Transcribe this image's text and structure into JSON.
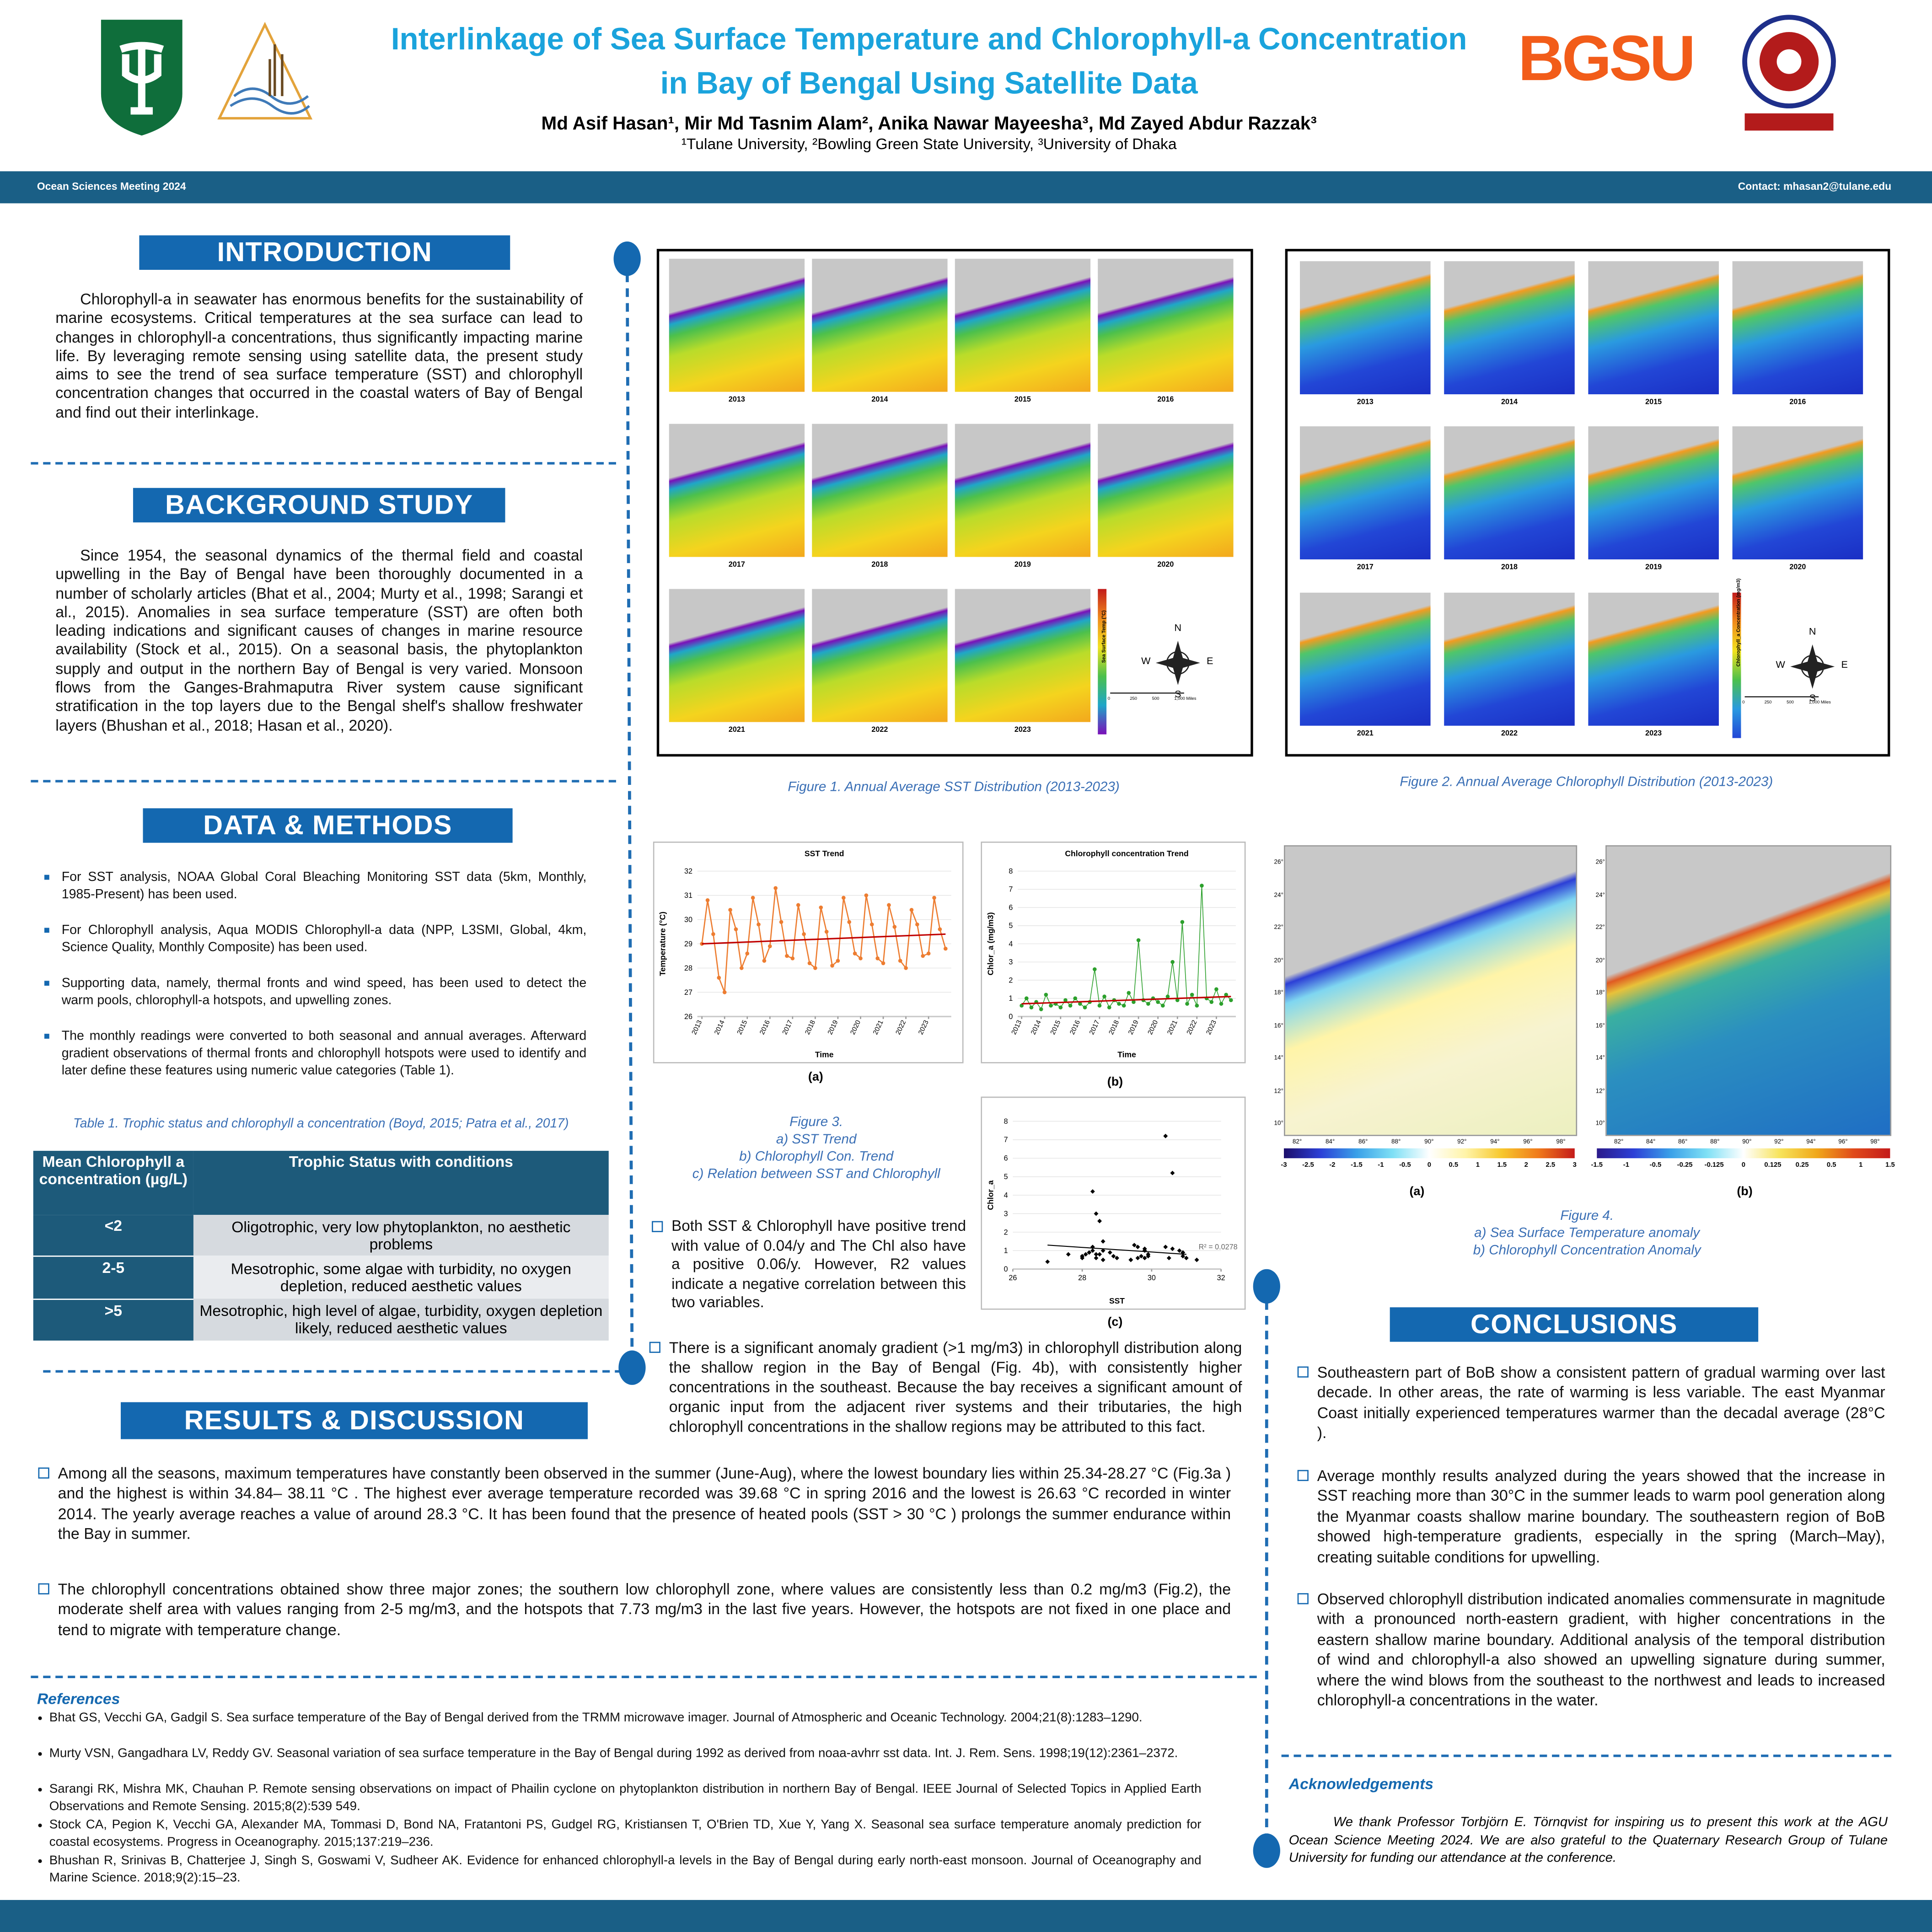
{
  "header": {
    "title": "Interlinkage of Sea Surface Temperature and Chlorophyll-a Concentration in Bay of Bengal Using Satellite Data",
    "authors": "Md Asif Hasan¹, Mir Md Tasnim Alam², Anika Nawar Mayeesha³, Md Zayed Abdur Razzak³",
    "affiliations": "¹Tulane University, ²Bowling Green State University, ³University of Dhaka",
    "logo_text": "BGSU",
    "meeting": "Ocean Sciences Meeting 2024",
    "contact": "Contact: mhasan2@tulane.edu"
  },
  "introduction": {
    "heading": "INTRODUCTION",
    "text": "Chlorophyll-a in seawater has enormous benefits for the sustainability of marine ecosystems. Critical temperatures at the sea surface can lead to changes in chlorophyll-a concentrations, thus significantly impacting marine life. By leveraging remote sensing using satellite data, the present study aims to see the trend of sea surface temperature (SST) and chlorophyll concentration changes that occurred in the coastal waters of Bay of Bengal and find out their interlinkage."
  },
  "background": {
    "heading": "BACKGROUND STUDY",
    "text": "Since 1954, the seasonal dynamics of the thermal field and coastal upwelling in the Bay of Bengal have been thoroughly documented in a number of scholarly articles (Bhat et al., 2004; Murty et al., 1998; Sarangi et al., 2015). Anomalies in sea surface temperature (SST) are often both leading indications and significant causes of changes in marine resource availability (Stock et al., 2015). On a seasonal basis, the phytoplankton supply and output in the northern Bay of Bengal is very varied. Monsoon flows from the Ganges-Brahmaputra River system cause significant stratification in the top layers due to the Bengal shelf's shallow freshwater layers (Bhushan et al., 2018; Hasan et al., 2020)."
  },
  "data_methods": {
    "heading": "DATA & METHODS",
    "bullets": [
      "For SST analysis, NOAA Global Coral Bleaching Monitoring SST data (5km, Monthly, 1985-Present) has been used.",
      "For Chlorophyll analysis, Aqua MODIS Chlorophyll-a data (NPP, L3SMI, Global, 4km, Science Quality, Monthly Composite) has been used.",
      "Supporting data, namely, thermal fronts and wind speed, has been used to detect the warm pools, chlorophyll-a hotspots, and upwelling zones.",
      "The monthly readings were converted to both seasonal and annual averages. Afterward gradient observations of thermal fronts and chlorophyll hotspots were used to identify and later define these features using numeric value categories (Table 1)."
    ],
    "table_caption": "Table 1. Trophic status and chlorophyll a concentration (Boyd, 2015; Patra et al., 2017)",
    "table": {
      "headers": [
        "Mean Chlorophyll a concentration (µg/L)",
        "Trophic Status with conditions"
      ],
      "rows": [
        [
          "<2",
          "Oligotrophic, very low phytoplankton, no aesthetic problems"
        ],
        [
          "2-5",
          "Mesotrophic, some algae with turbidity, no oxygen depletion, reduced aesthetic values"
        ],
        [
          ">5",
          "Mesotrophic, high level of algae, turbidity, oxygen depletion likely, reduced aesthetic values"
        ]
      ]
    }
  },
  "results": {
    "heading": "RESULTS & DISCUSSION",
    "paragraphs": [
      "Among all the seasons, maximum temperatures have constantly been observed in the summer (June-Aug), where the lowest boundary lies within 25.34-28.27 °C (Fig.3a ) and the highest is within 34.84– 38.11 °C . The highest ever average temperature recorded was 39.68 °C in spring 2016 and the lowest is 26.63 °C recorded in winter 2014. The yearly  average reaches a value of around 28.3 °C. It has been found that the presence of heated pools (SST > 30 °C ) prolongs the summer endurance within the Bay in summer.",
      "The chlorophyll concentrations obtained show three major zones; the southern low chlorophyll zone, where values are consistently less than 0.2 mg/m3 (Fig.2), the moderate shelf area with values ranging from 2-5 mg/m3, and the hotspots that 7.73 mg/m3 in the last five years. However, the hotspots are not fixed in one place and tend to migrate with temperature change."
    ],
    "figure3_text": "Both SST & Chlorophyll have positive trend with value of 0.04/y and The Chl also have a positive  0.06/y. However, R2 values indicate a negative correlation between this two variables.",
    "anomaly_text": "There is a significant anomaly gradient (>1 mg/m3) in chlorophyll distribution along the shallow region in the Bay of Bengal (Fig. 4b), with consistently higher concentrations in the southeast. Because the bay receives a significant amount of organic input from the adjacent river systems and their tributaries, the high chlorophyll concentrations in the shallow regions may be attributed to this fact."
  },
  "references": {
    "heading": "References",
    "items": [
      "Bhat GS, Vecchi GA, Gadgil S. Sea surface temperature of the Bay of Bengal derived from the TRMM microwave imager. Journal of Atmospheric and Oceanic Technology. 2004;21(8):1283–1290.",
      "Murty VSN, Gangadhara LV, Reddy GV. Seasonal variation of sea surface temperature in the Bay of Bengal during 1992 as derived from noaa-avhrr sst data. Int. J. Rem. Sens. 1998;19(12):2361–2372.",
      "Sarangi RK, Mishra MK, Chauhan P. Remote sensing observations on impact of Phailin cyclone on phytoplankton distribution in northern Bay of Bengal. IEEE Journal of Selected Topics in Applied Earth Observations and Remote Sensing. 2015;8(2):539 549.",
      "Stock CA, Pegion K, Vecchi GA, Alexander MA, Tommasi D, Bond NA, Fratantoni PS, Gudgel RG, Kristiansen T, O'Brien TD, Xue Y, Yang X. Seasonal sea surface temperature anomaly prediction for coastal ecosystems. Progress in Oceanography. 2015;137:219–236.",
      "Bhushan R, Srinivas B, Chatterjee J, Singh S, Goswami V, Sudheer AK. Evidence for enhanced chlorophyll-a levels in the Bay of Bengal during early north-east monsoon. Journal of Oceanography and Marine Science. 2018;9(2):15–23."
    ]
  },
  "conclusions": {
    "heading": "CONCLUSIONS",
    "bullets": [
      "Southeastern part of BoB show a consistent pattern of gradual warming over last decade. In other areas, the rate of warming is less variable. The east Myanmar Coast initially experienced temperatures warmer than the decadal average (28°C ).",
      "Average monthly results analyzed during the years showed that the increase in SST reaching more than 30°C in the summer leads to warm pool generation along the Myanmar coasts shallow marine boundary. The southeastern region of BoB showed high-temperature gradients, especially in the spring (March–May), creating suitable conditions for upwelling.",
      "Observed chlorophyll distribution indicated anomalies commensurate in magnitude with a pronounced north-eastern gradient, with higher concentrations in the eastern shallow marine boundary. Additional analysis of the temporal distribution of wind and chlorophyll-a also showed an upwelling signature during summer, where the wind blows from the southeast to the northwest and leads to increased chlorophyll-a concentrations in the water."
    ]
  },
  "acknowledgements": {
    "heading": "Acknowledgements",
    "text": "We thank Professor Torbjörn E. Törnqvist for inspiring us to present this work at the AGU Ocean Science Meeting 2024. We are also grateful to the Quaternary Research Group of Tulane University for funding our attendance at the conference."
  },
  "map_decor": {
    "compass": [
      "N",
      "E",
      "S",
      "W"
    ],
    "scale": [
      "0",
      "250",
      "500",
      "1,000 Miles"
    ],
    "lon": [
      "82°",
      "84°",
      "86°",
      "88°",
      "90°",
      "92°",
      "94°",
      "96°",
      "98°"
    ],
    "lat": [
      "26°",
      "24°",
      "22°",
      "20°",
      "18°",
      "16°",
      "14°",
      "12°",
      "10°"
    ]
  },
  "figure1": {
    "caption": "Figure 1. Annual Average SST Distribution (2013-2023)",
    "years": [
      2013,
      2014,
      2015,
      2016,
      2017,
      2018,
      2019,
      2020,
      2021,
      2022,
      2023
    ],
    "colorbar_title": "Sea Surface Temp (°C)"
  },
  "figure2": {
    "caption": "Figure 2. Annual Average Chlorophyll Distribution (2013-2023)",
    "years": [
      2013,
      2014,
      2015,
      2016,
      2017,
      2018,
      2019,
      2020,
      2021,
      2022,
      2023
    ],
    "colorbar_title": "Chlorophyll_a Concentration (mg/m3)"
  },
  "figure3": {
    "caption": [
      "Figure 3.",
      "a) SST Trend",
      "b) Chlorophyll Con. Trend",
      "c) Relation between SST and Chlorophyll"
    ],
    "panel_labels": [
      "(a)",
      "(b)",
      "(c)"
    ],
    "sst_trend": {
      "type": "line",
      "title": "SST Trend",
      "x_label": "Time",
      "y_label": "Temperature (°C)",
      "color": "#ed7d31",
      "x": [
        2013,
        2013.25,
        2013.5,
        2013.75,
        2014,
        2014.25,
        2014.5,
        2014.75,
        2015,
        2015.25,
        2015.5,
        2015.75,
        2016,
        2016.25,
        2016.5,
        2016.75,
        2017,
        2017.25,
        2017.5,
        2017.75,
        2018,
        2018.25,
        2018.5,
        2018.75,
        2019,
        2019.25,
        2019.5,
        2019.75,
        2020,
        2020.25,
        2020.5,
        2020.75,
        2021,
        2021.25,
        2021.5,
        2021.75,
        2022,
        2022.25,
        2022.5,
        2022.75,
        2023,
        2023.25,
        2023.5,
        2023.75
      ],
      "values": [
        29.0,
        30.8,
        29.4,
        27.6,
        27.0,
        30.4,
        29.6,
        28.0,
        28.6,
        30.9,
        29.8,
        28.3,
        28.9,
        31.3,
        29.9,
        28.5,
        28.4,
        30.6,
        29.4,
        28.2,
        28.0,
        30.5,
        29.5,
        28.1,
        28.3,
        30.9,
        29.9,
        28.6,
        28.4,
        31.0,
        29.8,
        28.4,
        28.2,
        30.6,
        29.7,
        28.3,
        28.0,
        30.4,
        29.8,
        28.5,
        28.6,
        30.9,
        29.6,
        28.8
      ],
      "trend": {
        "color": "#c00000",
        "x": [
          2013,
          2023.75
        ],
        "y": [
          29.0,
          29.4
        ]
      },
      "xlim": [
        2012.8,
        2024
      ],
      "ylim": [
        26,
        32
      ],
      "xticks": [
        2013,
        2014,
        2015,
        2016,
        2017,
        2018,
        2019,
        2020,
        2021,
        2022,
        2023
      ],
      "yticks": [
        26,
        27,
        28,
        29,
        30,
        31,
        32
      ]
    },
    "chlorophyll_trend": {
      "type": "line",
      "title": "Chlorophyll concentration Trend",
      "x_label": "Time",
      "y_label": "Chlor_a (mg/m3)",
      "color": "#2ca02c",
      "x": [
        2013,
        2013.25,
        2013.5,
        2013.75,
        2014,
        2014.25,
        2014.5,
        2014.75,
        2015,
        2015.25,
        2015.5,
        2015.75,
        2016,
        2016.25,
        2016.5,
        2016.75,
        2017,
        2017.25,
        2017.5,
        2017.75,
        2018,
        2018.25,
        2018.5,
        2018.75,
        2019,
        2019.25,
        2019.5,
        2019.75,
        2020,
        2020.25,
        2020.5,
        2020.75,
        2021,
        2021.25,
        2021.5,
        2021.75,
        2022,
        2022.25,
        2022.5,
        2022.75,
        2023,
        2023.25,
        2023.5,
        2023.75
      ],
      "values": [
        0.6,
        1.0,
        0.5,
        0.8,
        0.4,
        1.2,
        0.6,
        0.7,
        0.5,
        0.9,
        0.6,
        1.0,
        0.7,
        0.5,
        0.8,
        2.6,
        0.6,
        1.1,
        0.5,
        0.9,
        0.7,
        0.6,
        1.3,
        0.8,
        4.2,
        0.9,
        0.7,
        1.0,
        0.8,
        0.6,
        1.1,
        3.0,
        0.9,
        5.2,
        0.7,
        1.2,
        0.6,
        7.2,
        1.0,
        0.8,
        1.5,
        0.7,
        1.2,
        0.9
      ],
      "trend": {
        "color": "#c00000",
        "x": [
          2013,
          2023.75
        ],
        "y": [
          0.7,
          1.1
        ]
      },
      "xlim": [
        2012.8,
        2024
      ],
      "ylim": [
        0,
        8
      ],
      "xticks": [
        2013,
        2014,
        2015,
        2016,
        2017,
        2018,
        2019,
        2020,
        2021,
        2022,
        2023
      ],
      "yticks": [
        0,
        1,
        2,
        3,
        4,
        5,
        6,
        7,
        8
      ]
    },
    "relation": {
      "type": "scatter",
      "x_label": "SST",
      "y_label": "Chlor_a",
      "annotation": "R² = 0.0278",
      "color": "#000000",
      "fit": {
        "x": [
          27,
          31
        ],
        "y": [
          1.3,
          0.8
        ]
      },
      "xlim": [
        26,
        32
      ],
      "ylim": [
        0,
        8
      ],
      "xticks": [
        26,
        28,
        30,
        32
      ],
      "yticks": [
        0,
        1,
        2,
        3,
        4,
        5,
        6,
        7,
        8
      ]
    }
  },
  "figure4": {
    "caption": [
      "Figure 4.",
      "a) Sea Surface Temperature anomaly",
      "b) Chlorophyll Concentration Anomaly"
    ],
    "panel_labels": [
      "(a)",
      "(b)"
    ],
    "colorbar_a": [
      -3,
      -2.5,
      -2,
      -1.5,
      -1,
      -0.5,
      0,
      0.5,
      1,
      1.5,
      2,
      2.5,
      3
    ],
    "colorbar_b": [
      -1.5,
      -1,
      -0.5,
      -0.25,
      -0.125,
      0,
      0.125,
      0.25,
      0.5,
      1,
      1.5
    ]
  }
}
